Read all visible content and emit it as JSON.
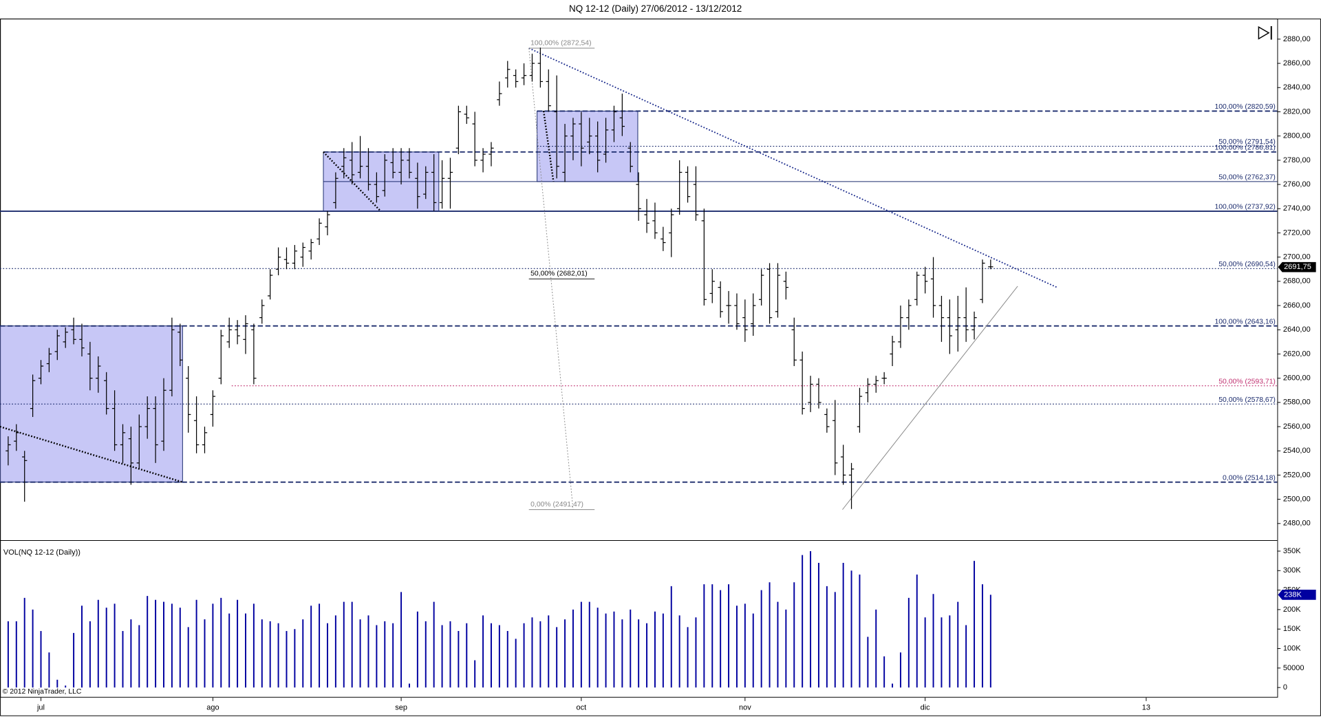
{
  "chart_data": [
    {
      "type": "ohlc",
      "title": "NQ 12-12 (Daily)  27/06/2012 - 13/12/2012",
      "color": "#000000",
      "grid": false,
      "xlim": [
        -1,
        155
      ],
      "ylim": [
        2467,
        2897
      ],
      "yticks": [
        {
          "value": 2480,
          "label": "2480,00"
        },
        {
          "value": 2500,
          "label": "2500,00"
        },
        {
          "value": 2520,
          "label": "2520,00"
        },
        {
          "value": 2540,
          "label": "2540,00"
        },
        {
          "value": 2560,
          "label": "2560,00"
        },
        {
          "value": 2580,
          "label": "2580,00"
        },
        {
          "value": 2600,
          "label": "2600,00"
        },
        {
          "value": 2620,
          "label": "2620,00"
        },
        {
          "value": 2640,
          "label": "2640,00"
        },
        {
          "value": 2660,
          "label": "2660,00"
        },
        {
          "value": 2680,
          "label": "2680,00"
        },
        {
          "value": 2700,
          "label": "2700,00"
        },
        {
          "value": 2720,
          "label": "2720,00"
        },
        {
          "value": 2740,
          "label": "2740,00"
        },
        {
          "value": 2760,
          "label": "2760,00"
        },
        {
          "value": 2780,
          "label": "2780,00"
        },
        {
          "value": 2800,
          "label": "2800,00"
        },
        {
          "value": 2820,
          "label": "2820,00"
        },
        {
          "value": 2840,
          "label": "2840,00"
        },
        {
          "value": 2860,
          "label": "2860,00"
        },
        {
          "value": 2880,
          "label": "2880,00"
        }
      ],
      "open": [
        2540,
        2548,
        2535,
        2575,
        2600,
        2612,
        2622,
        2630,
        2640,
        2632,
        2620,
        2600,
        2598,
        2575,
        2545,
        2550,
        2530,
        2560,
        2575,
        2548,
        2590,
        2638,
        2600,
        2565,
        2545,
        2570,
        2600,
        2630,
        2640,
        2632,
        2640,
        2650,
        2668,
        2690,
        2698,
        2695,
        2700,
        2705,
        2715,
        2725,
        2745,
        2775,
        2780,
        2770,
        2775,
        2760,
        2755,
        2778,
        2770,
        2780,
        2765,
        2752,
        2770,
        2745,
        2765,
        2790,
        2818,
        2810,
        2780,
        2785,
        2830,
        2848,
        2850,
        2848,
        2850,
        2860,
        2845,
        2820,
        2770,
        2800,
        2810,
        2795,
        2800,
        2785,
        2805,
        2815,
        2790,
        2760,
        2735,
        2730,
        2715,
        2720,
        2740,
        2770,
        2760,
        2730,
        2670,
        2675,
        2660,
        2660,
        2650,
        2645,
        2665,
        2690,
        2655,
        2680,
        2640,
        2615,
        2580,
        2595,
        2570,
        2565,
        2535,
        2520,
        2560,
        2588,
        2595,
        2600,
        2620,
        2630,
        2650,
        2665,
        2685,
        2682,
        2660,
        2650,
        2640,
        2650,
        2640,
        2665,
        2692
      ],
      "high": [
        2552,
        2562,
        2540,
        2603,
        2615,
        2625,
        2640,
        2642,
        2650,
        2645,
        2630,
        2618,
        2605,
        2590,
        2562,
        2560,
        2570,
        2585,
        2585,
        2600,
        2650,
        2645,
        2610,
        2585,
        2560,
        2590,
        2640,
        2650,
        2648,
        2652,
        2645,
        2665,
        2690,
        2708,
        2708,
        2710,
        2712,
        2715,
        2732,
        2738,
        2770,
        2790,
        2795,
        2800,
        2790,
        2770,
        2785,
        2790,
        2790,
        2790,
        2778,
        2775,
        2785,
        2780,
        2782,
        2825,
        2825,
        2820,
        2790,
        2795,
        2845,
        2862,
        2855,
        2860,
        2868,
        2873,
        2855,
        2850,
        2810,
        2815,
        2820,
        2815,
        2812,
        2815,
        2825,
        2835,
        2795,
        2770,
        2748,
        2745,
        2725,
        2740,
        2780,
        2775,
        2775,
        2740,
        2690,
        2680,
        2672,
        2670,
        2665,
        2670,
        2690,
        2695,
        2695,
        2688,
        2650,
        2622,
        2602,
        2600,
        2575,
        2582,
        2545,
        2530,
        2592,
        2600,
        2602,
        2605,
        2635,
        2660,
        2665,
        2688,
        2692,
        2700,
        2668,
        2665,
        2668,
        2675,
        2655,
        2698,
        2698
      ],
      "low": [
        2528,
        2540,
        2498,
        2568,
        2595,
        2605,
        2615,
        2625,
        2628,
        2618,
        2590,
        2588,
        2570,
        2540,
        2530,
        2512,
        2525,
        2550,
        2530,
        2540,
        2585,
        2610,
        2555,
        2538,
        2538,
        2560,
        2595,
        2625,
        2628,
        2620,
        2595,
        2645,
        2665,
        2685,
        2690,
        2690,
        2692,
        2698,
        2710,
        2718,
        2740,
        2765,
        2760,
        2765,
        2755,
        2745,
        2750,
        2765,
        2760,
        2765,
        2740,
        2748,
        2738,
        2740,
        2740,
        2785,
        2810,
        2775,
        2770,
        2775,
        2825,
        2840,
        2840,
        2842,
        2845,
        2840,
        2820,
        2765,
        2762,
        2780,
        2775,
        2785,
        2770,
        2778,
        2795,
        2800,
        2770,
        2730,
        2720,
        2715,
        2705,
        2700,
        2735,
        2745,
        2730,
        2660,
        2662,
        2650,
        2645,
        2640,
        2630,
        2635,
        2660,
        2645,
        2650,
        2665,
        2610,
        2570,
        2572,
        2575,
        2555,
        2520,
        2512,
        2492,
        2555,
        2580,
        2588,
        2595,
        2610,
        2625,
        2640,
        2660,
        2670,
        2650,
        2630,
        2620,
        2622,
        2630,
        2632,
        2662,
        2690
      ],
      "close": [
        2545,
        2555,
        2532,
        2598,
        2610,
        2620,
        2635,
        2638,
        2632,
        2625,
        2600,
        2610,
        2575,
        2545,
        2555,
        2530,
        2560,
        2575,
        2545,
        2590,
        2640,
        2615,
        2570,
        2545,
        2555,
        2585,
        2635,
        2640,
        2635,
        2645,
        2600,
        2660,
        2685,
        2700,
        2695,
        2705,
        2708,
        2712,
        2728,
        2735,
        2765,
        2782,
        2768,
        2775,
        2760,
        2750,
        2780,
        2770,
        2780,
        2770,
        2750,
        2770,
        2745,
        2765,
        2770,
        2820,
        2815,
        2780,
        2785,
        2790,
        2835,
        2855,
        2845,
        2850,
        2860,
        2845,
        2825,
        2775,
        2800,
        2810,
        2790,
        2800,
        2780,
        2805,
        2820,
        2808,
        2775,
        2740,
        2728,
        2720,
        2712,
        2735,
        2770,
        2750,
        2735,
        2665,
        2680,
        2655,
        2660,
        2645,
        2640,
        2660,
        2685,
        2650,
        2685,
        2675,
        2615,
        2575,
        2595,
        2580,
        2560,
        2530,
        2520,
        2525,
        2585,
        2595,
        2598,
        2600,
        2630,
        2650,
        2660,
        2685,
        2680,
        2660,
        2650,
        2635,
        2650,
        2640,
        2650,
        2695,
        2692
      ],
      "last_value": {
        "value": 2691.75,
        "label": "2691,75"
      },
      "rects": [
        {
          "x": [
            -1,
            21.3
          ],
          "y": [
            2643.16,
            2514.18
          ],
          "color": "#9999ee"
        },
        {
          "x": [
            38.5,
            52.6
          ],
          "y": [
            2786.81,
            2737.92
          ],
          "color": "#9999ee"
        },
        {
          "x": [
            64.6,
            76.9
          ],
          "y": [
            2820.59,
            2762.37
          ],
          "color": "#9999ee"
        }
      ],
      "levels": [
        {
          "label": "100,00% (2820,59)",
          "value": 2820.59,
          "x": 64.6,
          "style": "dash",
          "color": "#1a2a6c"
        },
        {
          "label": "50,00% (2791,54)",
          "value": 2791.54,
          "x": 64.6,
          "style": "dot",
          "color": "#1a2a6c"
        },
        {
          "label": "100,00% (2786,81)",
          "value": 2786.81,
          "x": 38.5,
          "style": "dash",
          "color": "#1a2a6c"
        },
        {
          "label": "50,00% (2762,37)",
          "value": 2762.37,
          "x": 38.5,
          "style": "thin",
          "color": "#1a2a6c"
        },
        {
          "label": "100,00% (2737,92)",
          "value": 2737.92,
          "x": -1,
          "style": "solid",
          "color": "#1a2a6c"
        },
        {
          "label": "50,00% (2690,54)",
          "value": 2690.54,
          "x": -1,
          "style": "dot",
          "color": "#1a2a6c"
        },
        {
          "label": "100,00% (2643,16)",
          "value": 2643.16,
          "x": -1,
          "style": "dash",
          "color": "#1a2a6c"
        },
        {
          "label": "50,00% (2593,71)",
          "value": 2593.71,
          "x": 27.3,
          "style": "dot",
          "color": "#c03070"
        },
        {
          "label": "50,00% (2578,67)",
          "value": 2578.67,
          "x": -1,
          "style": "dot",
          "color": "#1a2a6c"
        },
        {
          "label": "0,00% (2514,18)",
          "value": 2514.18,
          "x": -1,
          "style": "dash",
          "color": "#1a2a6c"
        }
      ],
      "fib_labels": [
        {
          "label": "100,00% (2872,54)",
          "value": 2872.54,
          "x": 63.6,
          "color": "#888888"
        },
        {
          "label": "50,00% (2682,01)",
          "value": 2682.01,
          "x": 63.6,
          "color": "#000000"
        },
        {
          "label": "0,00% (2491,47)",
          "value": 2491.47,
          "x": 63.6,
          "color": "#888888"
        }
      ],
      "lines": [
        {
          "x": [
            -1,
            21.3
          ],
          "y": [
            2560,
            2514.18
          ],
          "style": "dot",
          "color": "#000000",
          "width": 2
        },
        {
          "x": [
            38.5,
            45.5
          ],
          "y": [
            2786.81,
            2737.92
          ],
          "style": "dot",
          "color": "#000000",
          "width": 2
        },
        {
          "x": [
            65.4,
            66.6
          ],
          "y": [
            2820.59,
            2762.37
          ],
          "style": "dot",
          "color": "#000000",
          "width": 2
        },
        {
          "x": [
            63.6,
            128.1
          ],
          "y": [
            2872.54,
            2675
          ],
          "style": "dot",
          "color": "#1a2a8c",
          "width": 1.5
        },
        {
          "x": [
            101.9,
            123.3
          ],
          "y": [
            2491.47,
            2676
          ],
          "style": "solid",
          "color": "#888888",
          "width": 0.8
        },
        {
          "x": [
            63.6,
            69
          ],
          "y": [
            2872.54,
            2491.47
          ],
          "style": "dot",
          "color": "#888888",
          "width": 0.8
        }
      ]
    },
    {
      "type": "bar",
      "title": "VOL(NQ 12-12 (Daily))",
      "color": "#0000a0",
      "grid": false,
      "xlim": [
        -1,
        155
      ],
      "xticks": [
        {
          "value": 4,
          "label": "jul"
        },
        {
          "value": 25,
          "label": "ago"
        },
        {
          "value": 48,
          "label": "sep"
        },
        {
          "value": 70,
          "label": "oct"
        },
        {
          "value": 90,
          "label": "nov"
        },
        {
          "value": 112,
          "label": "dic"
        },
        {
          "value": 139,
          "label": "13"
        }
      ],
      "ylim": [
        -26000,
        374000
      ],
      "yticks": [
        0,
        50000,
        {
          "value": 100000,
          "label": "100K"
        },
        {
          "value": 150000,
          "label": "150K"
        },
        {
          "value": 200000,
          "label": "200K"
        },
        {
          "value": 250000,
          "label": "250K"
        },
        {
          "value": 300000,
          "label": "300K"
        },
        {
          "value": 350000,
          "label": "350K"
        }
      ],
      "values": [
        170000,
        170000,
        230000,
        200000,
        145000,
        90000,
        20000,
        5000,
        140000,
        210000,
        170000,
        225000,
        205000,
        215000,
        145000,
        175000,
        160000,
        235000,
        225000,
        220000,
        215000,
        205000,
        155000,
        225000,
        175000,
        215000,
        230000,
        190000,
        225000,
        190000,
        215000,
        175000,
        170000,
        165000,
        145000,
        150000,
        175000,
        210000,
        215000,
        165000,
        185000,
        220000,
        220000,
        175000,
        185000,
        160000,
        170000,
        165000,
        245000,
        10000,
        195000,
        170000,
        220000,
        160000,
        170000,
        145000,
        165000,
        70000,
        185000,
        165000,
        160000,
        145000,
        125000,
        165000,
        180000,
        170000,
        185000,
        155000,
        175000,
        200000,
        220000,
        220000,
        205000,
        190000,
        195000,
        175000,
        200000,
        175000,
        165000,
        195000,
        190000,
        260000,
        185000,
        155000,
        180000,
        265000,
        265000,
        250000,
        265000,
        210000,
        215000,
        190000,
        250000,
        270000,
        220000,
        200000,
        270000,
        340000,
        350000,
        320000,
        260000,
        245000,
        320000,
        300000,
        290000,
        130000,
        200000,
        80000,
        10000,
        90000,
        230000,
        290000,
        180000,
        240000,
        180000,
        185000,
        220000,
        160000,
        325000,
        265000,
        238000
      ],
      "last_value": {
        "value": 238000,
        "label": "238K"
      }
    }
  ],
  "copyright": "© 2012 NinjaTrader, LLC"
}
